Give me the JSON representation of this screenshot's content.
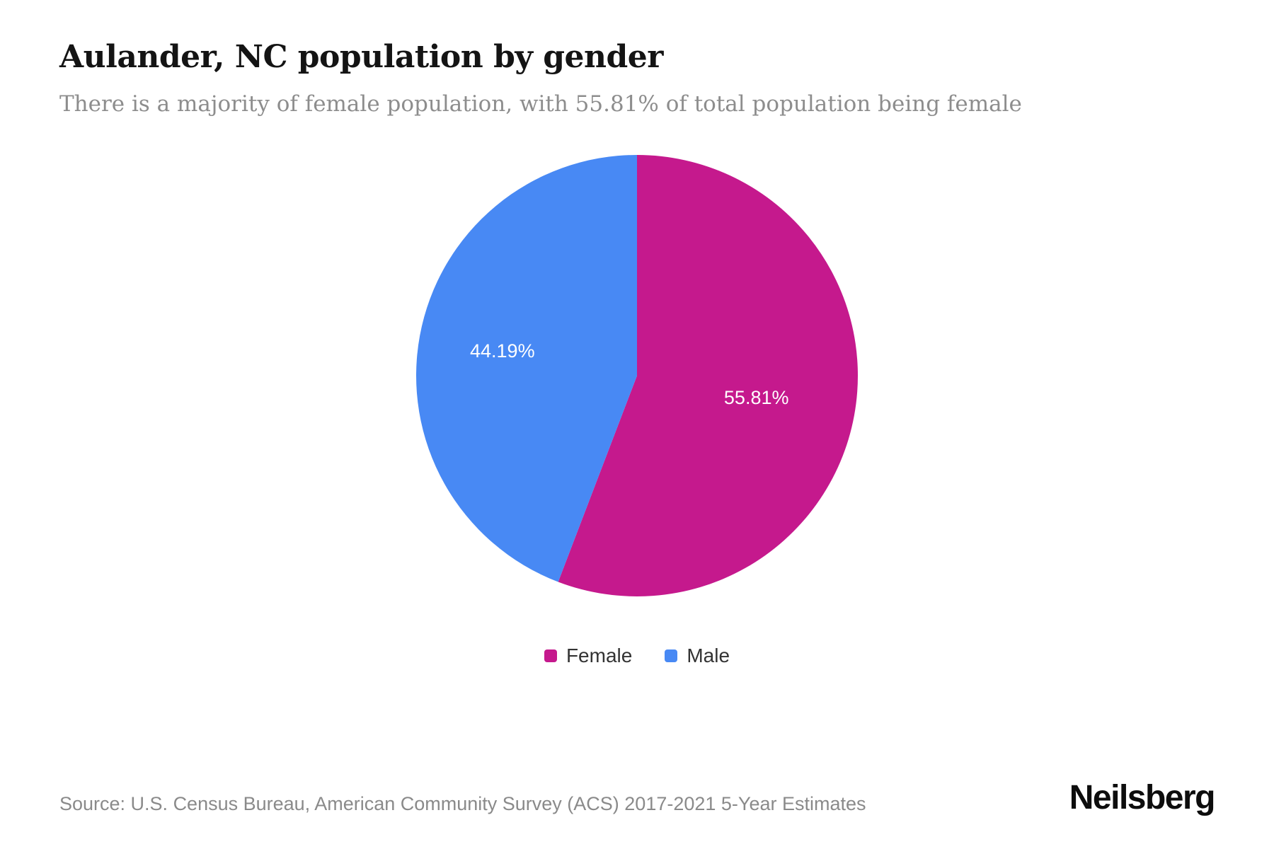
{
  "header": {
    "title": "Aulander, NC population by gender",
    "subtitle": "There is a majority of female population, with 55.81% of total population being female"
  },
  "footer": {
    "source": "Source: U.S. Census Bureau, American Community Survey (ACS) 2017-2021 5-Year Estimates",
    "brand": "Neilsberg"
  },
  "chart_data": {
    "type": "pie",
    "title": "Aulander, NC population by gender",
    "slices": [
      {
        "label": "Female",
        "value": 55.81,
        "display_label": "55.81%",
        "color": "#c5198d",
        "label_radius": 0.55
      },
      {
        "label": "Male",
        "value": 44.19,
        "display_label": "44.19%",
        "color": "#4889f4",
        "label_radius": 0.62
      }
    ],
    "start_angle_deg": 0,
    "direction": "clockwise",
    "value_label_color": "#ffffff",
    "legend": {
      "position": "bottom",
      "entries": [
        "Female",
        "Male"
      ]
    }
  }
}
